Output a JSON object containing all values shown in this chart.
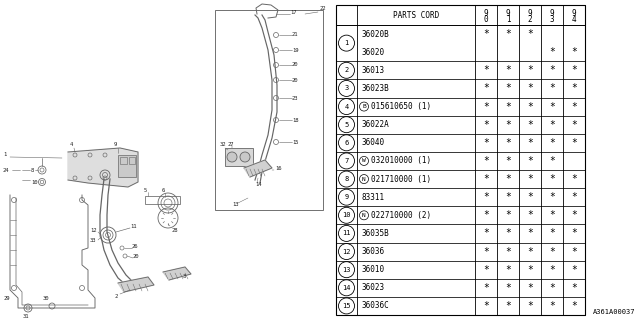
{
  "title": "A361A00037",
  "bg_color": "#ffffff",
  "rows": [
    {
      "num": "1",
      "parts": [
        "36020B",
        "36020"
      ],
      "prefix": [
        "",
        ""
      ],
      "stars": [
        [
          "*",
          "*",
          "*",
          "",
          ""
        ],
        [
          "",
          "",
          "",
          "*",
          "*"
        ]
      ]
    },
    {
      "num": "2",
      "parts": [
        "36013"
      ],
      "prefix": [
        ""
      ],
      "stars": [
        [
          "*",
          "*",
          "*",
          "*",
          "*"
        ]
      ]
    },
    {
      "num": "3",
      "parts": [
        "36023B"
      ],
      "prefix": [
        ""
      ],
      "stars": [
        [
          "*",
          "*",
          "*",
          "*",
          "*"
        ]
      ]
    },
    {
      "num": "4",
      "parts": [
        "015610650 (1)"
      ],
      "prefix": [
        "B"
      ],
      "stars": [
        [
          "*",
          "*",
          "*",
          "*",
          "*"
        ]
      ]
    },
    {
      "num": "5",
      "parts": [
        "36022A"
      ],
      "prefix": [
        ""
      ],
      "stars": [
        [
          "*",
          "*",
          "*",
          "*",
          "*"
        ]
      ]
    },
    {
      "num": "6",
      "parts": [
        "36040"
      ],
      "prefix": [
        ""
      ],
      "stars": [
        [
          "*",
          "*",
          "*",
          "*",
          "*"
        ]
      ]
    },
    {
      "num": "7",
      "parts": [
        "032010000 (1)"
      ],
      "prefix": [
        "W"
      ],
      "stars": [
        [
          "*",
          "*",
          "*",
          "*",
          ""
        ]
      ]
    },
    {
      "num": "8",
      "parts": [
        "021710000 (1)"
      ],
      "prefix": [
        "N"
      ],
      "stars": [
        [
          "*",
          "*",
          "*",
          "*",
          "*"
        ]
      ]
    },
    {
      "num": "9",
      "parts": [
        "83311"
      ],
      "prefix": [
        ""
      ],
      "stars": [
        [
          "*",
          "*",
          "*",
          "*",
          "*"
        ]
      ]
    },
    {
      "num": "10",
      "parts": [
        "022710000 (2)"
      ],
      "prefix": [
        "N"
      ],
      "stars": [
        [
          "*",
          "*",
          "*",
          "*",
          "*"
        ]
      ]
    },
    {
      "num": "11",
      "parts": [
        "36035B"
      ],
      "prefix": [
        ""
      ],
      "stars": [
        [
          "*",
          "*",
          "*",
          "*",
          "*"
        ]
      ]
    },
    {
      "num": "12",
      "parts": [
        "36036"
      ],
      "prefix": [
        ""
      ],
      "stars": [
        [
          "*",
          "*",
          "*",
          "*",
          "*"
        ]
      ]
    },
    {
      "num": "13",
      "parts": [
        "36010"
      ],
      "prefix": [
        ""
      ],
      "stars": [
        [
          "*",
          "*",
          "*",
          "*",
          "*"
        ]
      ]
    },
    {
      "num": "14",
      "parts": [
        "36023"
      ],
      "prefix": [
        ""
      ],
      "stars": [
        [
          "*",
          "*",
          "*",
          "*",
          "*"
        ]
      ]
    },
    {
      "num": "15",
      "parts": [
        "36036C"
      ],
      "prefix": [
        ""
      ],
      "stars": [
        [
          "*",
          "*",
          "*",
          "*",
          "*"
        ]
      ]
    }
  ],
  "dc": "#666666",
  "lc": "#000000"
}
